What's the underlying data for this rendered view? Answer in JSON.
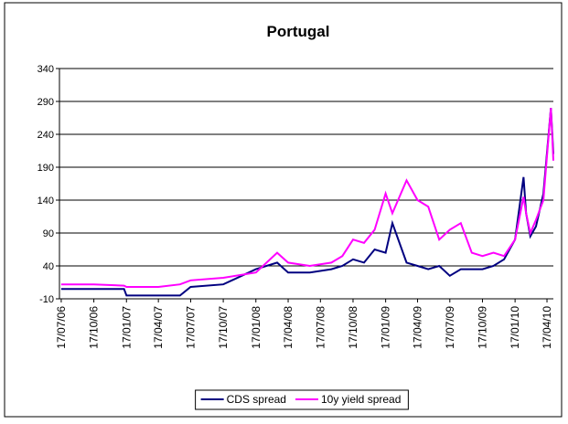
{
  "chart_data": {
    "type": "line",
    "title": "Portugal",
    "x": [
      "2006-07-17",
      "2006-10-17",
      "2007-01-10",
      "2007-01-17",
      "2007-04-17",
      "2007-06-17",
      "2007-07-17",
      "2007-10-17",
      "2008-01-17",
      "2008-03-17",
      "2008-04-17",
      "2008-06-17",
      "2008-08-17",
      "2008-09-17",
      "2008-10-17",
      "2008-11-17",
      "2008-12-17",
      "2009-01-17",
      "2009-02-05",
      "2009-03-17",
      "2009-04-17",
      "2009-05-17",
      "2009-06-17",
      "2009-07-17",
      "2009-08-17",
      "2009-09-17",
      "2009-10-17",
      "2009-11-17",
      "2009-12-17",
      "2010-01-17",
      "2010-02-10",
      "2010-02-17",
      "2010-03-01",
      "2010-03-17",
      "2010-04-07",
      "2010-04-28",
      "2010-05-05"
    ],
    "series": [
      {
        "name": "CDS spread",
        "color": "#000080",
        "values": [
          5,
          5,
          5,
          -5,
          -5,
          -5,
          8,
          12,
          35,
          45,
          30,
          30,
          35,
          40,
          50,
          45,
          65,
          60,
          105,
          45,
          40,
          35,
          40,
          25,
          35,
          35,
          35,
          40,
          50,
          80,
          175,
          120,
          85,
          100,
          150,
          280,
          210
        ]
      },
      {
        "name": "10y yield spread",
        "color": "#ff00ff",
        "values": [
          12,
          12,
          10,
          8,
          8,
          12,
          18,
          22,
          30,
          60,
          45,
          40,
          45,
          55,
          80,
          75,
          95,
          150,
          120,
          170,
          140,
          130,
          80,
          95,
          105,
          60,
          55,
          60,
          55,
          80,
          145,
          120,
          90,
          110,
          140,
          280,
          200
        ]
      }
    ],
    "xlim": [
      "2006-07-12",
      "2010-05-05"
    ],
    "xticks": [
      {
        "value": "2006-07-17",
        "label": "17/07/06"
      },
      {
        "value": "2006-10-17",
        "label": "17/10/06"
      },
      {
        "value": "2007-01-17",
        "label": "17/01/07"
      },
      {
        "value": "2007-04-17",
        "label": "17/04/07"
      },
      {
        "value": "2007-07-17",
        "label": "17/07/07"
      },
      {
        "value": "2007-10-17",
        "label": "17/10/07"
      },
      {
        "value": "2008-01-17",
        "label": "17/01/08"
      },
      {
        "value": "2008-04-17",
        "label": "17/04/08"
      },
      {
        "value": "2008-07-17",
        "label": "17/07/08"
      },
      {
        "value": "2008-10-17",
        "label": "17/10/08"
      },
      {
        "value": "2009-01-17",
        "label": "17/01/09"
      },
      {
        "value": "2009-04-17",
        "label": "17/04/09"
      },
      {
        "value": "2009-07-17",
        "label": "17/07/09"
      },
      {
        "value": "2009-10-17",
        "label": "17/10/09"
      },
      {
        "value": "2010-01-17",
        "label": "17/01/10"
      },
      {
        "value": "2010-04-17",
        "label": "17/04/10"
      }
    ],
    "ylim": [
      -10,
      340
    ],
    "yticks": [
      -10,
      40,
      90,
      140,
      190,
      240,
      290,
      340
    ],
    "grid": true,
    "legend": "bottom"
  }
}
